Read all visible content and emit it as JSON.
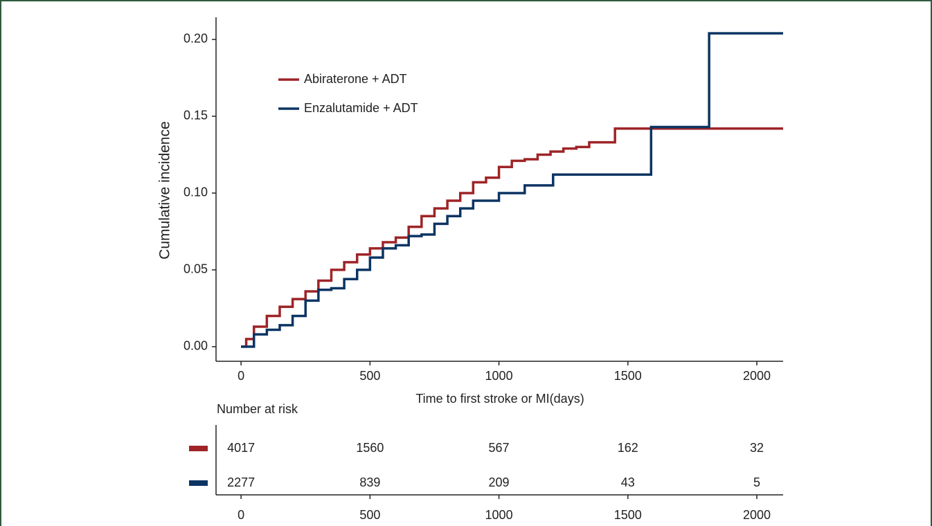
{
  "chart_data": [
    {
      "type": "step",
      "x_label": "Time to first stroke or MI(days)",
      "y_label": "Cumulative incidence",
      "xlim": [
        -97,
        2102
      ],
      "ylim": [
        -0.0095,
        0.2144
      ],
      "xticks": [
        0,
        500,
        1000,
        1500,
        2000
      ],
      "yticks": [
        {
          "value": 0,
          "label": "0.00"
        },
        {
          "value": 0.05,
          "label": "0.05"
        },
        {
          "value": 0.1,
          "label": "0.10"
        },
        {
          "value": 0.15,
          "label": "0.15"
        },
        {
          "value": 0.2,
          "label": "0.20"
        }
      ],
      "legend": "top-left",
      "series": [
        {
          "name": "Abiraterone + ADT",
          "color": "#9e2427",
          "x": [
            0,
            20,
            50,
            100,
            150,
            200,
            250,
            300,
            350,
            400,
            450,
            500,
            550,
            600,
            650,
            700,
            750,
            800,
            850,
            900,
            950,
            1000,
            1050,
            1100,
            1150,
            1200,
            1250,
            1300,
            1350,
            1400,
            1450,
            2102
          ],
          "values": [
            0,
            0.005,
            0.013,
            0.02,
            0.026,
            0.031,
            0.036,
            0.043,
            0.05,
            0.055,
            0.06,
            0.064,
            0.068,
            0.071,
            0.078,
            0.085,
            0.09,
            0.095,
            0.1,
            0.107,
            0.11,
            0.117,
            0.121,
            0.122,
            0.125,
            0.127,
            0.129,
            0.13,
            0.133,
            0.133,
            0.142,
            0.142
          ]
        },
        {
          "name": "Enzalutamide + ADT",
          "color": "#0c3463",
          "x": [
            0,
            50,
            100,
            150,
            200,
            250,
            300,
            350,
            400,
            450,
            500,
            550,
            600,
            650,
            700,
            750,
            800,
            850,
            900,
            950,
            1000,
            1100,
            1210,
            1590,
            1815,
            2102
          ],
          "values": [
            0,
            0.008,
            0.011,
            0.014,
            0.02,
            0.03,
            0.037,
            0.038,
            0.044,
            0.05,
            0.058,
            0.064,
            0.066,
            0.072,
            0.073,
            0.08,
            0.085,
            0.09,
            0.095,
            0.095,
            0.1,
            0.105,
            0.112,
            0.143,
            0.204,
            0.204
          ]
        }
      ]
    },
    {
      "type": "risk-table",
      "title": "Number at risk",
      "xlim": [
        -97,
        2102
      ],
      "xticks": [
        0,
        500,
        1000,
        1500,
        2000
      ],
      "rows": [
        {
          "color": "#9e2427",
          "values": [
            4017,
            1560,
            567,
            162,
            32
          ]
        },
        {
          "color": "#0c3463",
          "values": [
            2277,
            839,
            209,
            43,
            5
          ]
        }
      ]
    }
  ]
}
